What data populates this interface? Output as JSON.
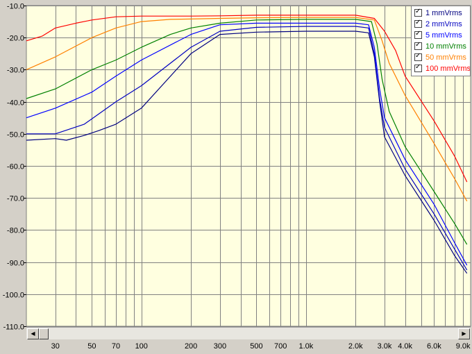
{
  "chart_data": {
    "type": "line",
    "xscale": "log",
    "xlim": [
      20,
      10000
    ],
    "ylim": [
      -110,
      -10
    ],
    "grid": true,
    "legend_position": "top-right",
    "background": "#ffffe0",
    "y_ticks": [
      "-10.0",
      "-20.0",
      "-30.0",
      "-40.0",
      "-50.0",
      "-60.0",
      "-70.0",
      "-80.0",
      "-90.0",
      "-100.0",
      "-110.0"
    ],
    "x_tick_labels": [
      "30",
      "50",
      "70",
      "100",
      "200",
      "300",
      "500",
      "700",
      "1.0k",
      "2.0k",
      "3.0k",
      "4.0k",
      "6.0k",
      "9.0k"
    ],
    "x_tick_values": [
      30,
      50,
      70,
      100,
      200,
      300,
      500,
      700,
      1000,
      2000,
      3000,
      4000,
      6000,
      9000
    ],
    "series": [
      {
        "name": "1 mmVrms",
        "color": "#000080",
        "x": [
          20,
          30,
          35,
          45,
          55,
          70,
          100,
          200,
          300,
          500,
          1000,
          2000,
          2400,
          2600,
          2800,
          3000,
          4000,
          6000,
          8000,
          9500
        ],
        "y": [
          -52,
          -51.5,
          -52,
          -50.5,
          -49,
          -47,
          -42,
          -25,
          -19,
          -18.3,
          -18,
          -18,
          -18.5,
          -26,
          -40,
          -51,
          -63,
          -77,
          -88,
          -93.5
        ]
      },
      {
        "name": "2 mmVrms",
        "color": "#0000c0",
        "x": [
          20,
          30,
          45,
          70,
          100,
          200,
          300,
          500,
          1000,
          2000,
          2400,
          2600,
          2800,
          3000,
          4000,
          6000,
          8000,
          9500
        ],
        "y": [
          -50,
          -50,
          -47,
          -40,
          -35,
          -23,
          -18,
          -16.8,
          -16.5,
          -16.5,
          -17,
          -25,
          -39,
          -48,
          -61,
          -75,
          -86,
          -92.5
        ]
      },
      {
        "name": "5 mmVrms",
        "color": "#0000ff",
        "x": [
          20,
          30,
          50,
          70,
          100,
          200,
          300,
          500,
          1000,
          2000,
          2400,
          2600,
          2800,
          3000,
          4000,
          6000,
          8000,
          9500
        ],
        "y": [
          -45,
          -42,
          -37,
          -32,
          -27,
          -19,
          -16,
          -15.5,
          -15.5,
          -15.5,
          -16,
          -23,
          -36,
          -45,
          -58,
          -72,
          -84,
          -91
        ]
      },
      {
        "name": "10 mmVrms",
        "color": "#008000",
        "x": [
          20,
          30,
          50,
          70,
          100,
          150,
          200,
          300,
          500,
          1000,
          2000,
          2500,
          2700,
          2900,
          3200,
          4000,
          6000,
          8000,
          9500
        ],
        "y": [
          -39,
          -36,
          -30,
          -27,
          -23,
          -19,
          -17,
          -15.5,
          -14.5,
          -14.3,
          -14.3,
          -15,
          -22,
          -33,
          -43,
          -54,
          -68,
          -78,
          -84.5
        ]
      },
      {
        "name": "50 mmVrms",
        "color": "#ff8000",
        "x": [
          20,
          30,
          50,
          70,
          100,
          150,
          200,
          300,
          500,
          1000,
          2000,
          2600,
          2900,
          3200,
          4000,
          6000,
          8000,
          9500
        ],
        "y": [
          -30,
          -26,
          -20,
          -17,
          -15,
          -14.3,
          -14.2,
          -14,
          -13.8,
          -13.7,
          -13.7,
          -14.5,
          -21,
          -28,
          -38,
          -53,
          -64,
          -71
        ]
      },
      {
        "name": "100 mmVrms",
        "color": "#ff0000",
        "x": [
          20,
          25,
          30,
          40,
          50,
          70,
          100,
          200,
          300,
          500,
          1000,
          2000,
          2600,
          3000,
          3500,
          4000,
          6000,
          8000,
          9500
        ],
        "y": [
          -21,
          -19.5,
          -17,
          -15.5,
          -14.5,
          -13.5,
          -13.3,
          -13.3,
          -13.2,
          -13,
          -13,
          -13,
          -14,
          -18,
          -24,
          -32,
          -46,
          -57,
          -65
        ]
      }
    ]
  }
}
